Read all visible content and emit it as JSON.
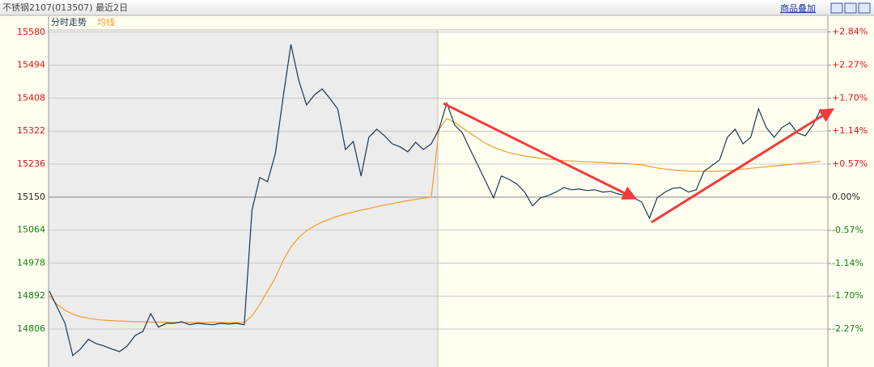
{
  "chart_data": {
    "type": "line",
    "title": "不锈钢2107(013507) 最近2日",
    "overlay_link": "商品叠加",
    "ylim": [
      14707,
      15588
    ],
    "yticks": [
      15580,
      15494,
      15408,
      15322,
      15236,
      15150,
      15064,
      14978,
      14892,
      14806
    ],
    "y2lim": [
      -2.92,
      2.89
    ],
    "y2ticks": [
      {
        "value": 2.84,
        "label": "+2.84%"
      },
      {
        "value": 2.27,
        "label": "+2.27%"
      },
      {
        "value": 1.7,
        "label": "+1.70%"
      },
      {
        "value": 1.14,
        "label": "+1.14%"
      },
      {
        "value": 0.57,
        "label": "+0.57%"
      },
      {
        "value": 0,
        "label": "0.00%"
      },
      {
        "value": -0.57,
        "label": "-0.57%"
      },
      {
        "value": -1.14,
        "label": "-1.14%"
      },
      {
        "value": -1.7,
        "label": "-1.70%"
      },
      {
        "value": -2.27,
        "label": "-2.27%"
      }
    ],
    "grid": true,
    "series": [
      {
        "name": "分时走势",
        "color": "#1c3656",
        "values": [
          14905,
          14863,
          14821,
          14737,
          14754,
          14779,
          14768,
          14762,
          14754,
          14747,
          14762,
          14789,
          14800,
          14846,
          14811,
          14821,
          14821,
          14825,
          14817,
          14821,
          14819,
          14817,
          14821,
          14819,
          14821,
          14817,
          15116,
          15201,
          15190,
          15264,
          15411,
          15548,
          15454,
          15390,
          15416,
          15432,
          15407,
          15380,
          15274,
          15295,
          15205,
          15306,
          15327,
          15310,
          15289,
          15281,
          15268,
          15293,
          15274,
          15289,
          15327,
          15395,
          15338,
          15317,
          15274,
          15232,
          15190,
          15148,
          15205,
          15196,
          15184,
          15163,
          15127,
          15148,
          15154,
          15163,
          15175,
          15169,
          15171,
          15167,
          15169,
          15163,
          15165,
          15158,
          15154,
          15148,
          15137,
          15095,
          15148,
          15163,
          15173,
          15175,
          15163,
          15169,
          15217,
          15232,
          15247,
          15306,
          15327,
          15289,
          15306,
          15380,
          15331,
          15306,
          15331,
          15344,
          15317,
          15310,
          15338,
          15380
        ]
      },
      {
        "name": "均线",
        "color": "#f39a2e",
        "values": [
          14892,
          14870,
          14855,
          14845,
          14838,
          14834,
          14831,
          14829,
          14828,
          14827,
          14826,
          14825,
          14825,
          14824,
          14824,
          14824,
          14823,
          14823,
          14823,
          14823,
          14823,
          14823,
          14823,
          14823,
          14823,
          14823,
          14840,
          14870,
          14905,
          14940,
          14985,
          15020,
          15045,
          15062,
          15075,
          15085,
          15093,
          15100,
          15106,
          15111,
          15116,
          15120,
          15125,
          15129,
          15133,
          15137,
          15141,
          15144,
          15147,
          15150,
          15327,
          15355,
          15345,
          15330,
          15317,
          15303,
          15290,
          15280,
          15272,
          15266,
          15261,
          15257,
          15254,
          15251,
          15249,
          15247,
          15245,
          15244,
          15243,
          15242,
          15241,
          15240,
          15239,
          15238,
          15237,
          15236,
          15234,
          15230,
          15226,
          15223,
          15221,
          15219,
          15218,
          15217,
          15217,
          15217,
          15218,
          15219,
          15221,
          15223,
          15225,
          15227,
          15229,
          15231,
          15233,
          15235,
          15237,
          15239,
          15241,
          15243
        ]
      }
    ]
  }
}
